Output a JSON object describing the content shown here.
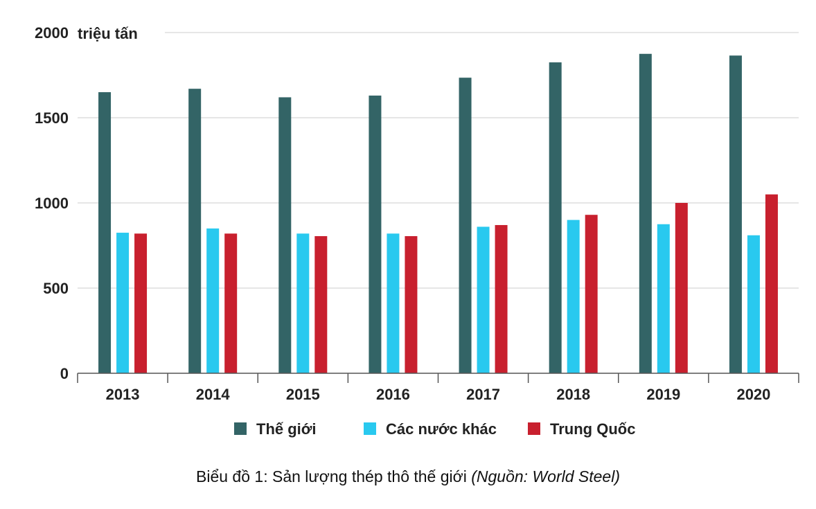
{
  "chart_data": {
    "type": "bar",
    "unit_label": "triệu tấn",
    "categories": [
      "2013",
      "2014",
      "2015",
      "2016",
      "2017",
      "2018",
      "2019",
      "2020"
    ],
    "series": [
      {
        "name": "Thế giới",
        "color": "#336466",
        "values": [
          1650,
          1670,
          1620,
          1630,
          1735,
          1825,
          1875,
          1865
        ]
      },
      {
        "name": "Các nước khác",
        "color": "#29c9ef",
        "values": [
          825,
          850,
          820,
          820,
          860,
          900,
          875,
          810
        ]
      },
      {
        "name": "Trung Quốc",
        "color": "#c8202e",
        "values": [
          820,
          820,
          805,
          805,
          870,
          930,
          1000,
          1050
        ]
      }
    ],
    "ylim": [
      0,
      2000
    ],
    "yticks": [
      "0",
      "500",
      "1000",
      "1500",
      "2000"
    ],
    "grid": true,
    "legend_position": "bottom"
  },
  "caption": {
    "lead": "Biểu đồ 1:",
    "text": " Sản lượng thép thô thế giới ",
    "source": "(Nguồn: World Steel)"
  }
}
